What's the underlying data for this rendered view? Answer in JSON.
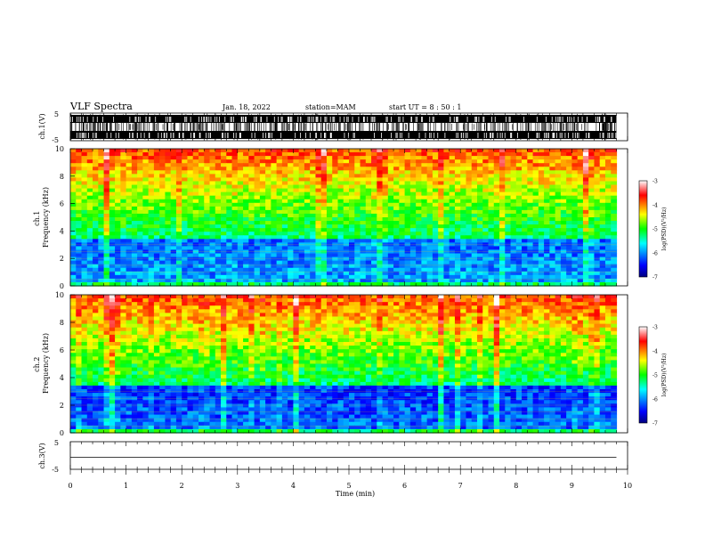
{
  "header": {
    "title": "VLF Spectra",
    "date": "Jan. 18, 2022",
    "station": "station=MAM",
    "start": "start UT = 8 : 50 : 1"
  },
  "chart_data": [
    {
      "type": "line",
      "ylabel": "ch.1(V)",
      "ylim": [
        -5,
        5
      ],
      "yticks": [
        "5",
        "-5"
      ],
      "xlim": [
        0,
        10
      ],
      "series": [],
      "note_color": "#000000"
    },
    {
      "type": "heatmap",
      "ylabel": "ch.1 Frequency (kHz)",
      "ylim": [
        0,
        10
      ],
      "yticks": [
        "10",
        "8",
        "6",
        "4",
        "2",
        "0"
      ],
      "xlim": [
        0,
        10
      ],
      "data_xmax": 9.8,
      "colorbar": {
        "label": "log(PSD)(V²/Hz)",
        "range": [
          -7,
          -3
        ],
        "ticks": [
          "-3",
          "-4",
          "-5",
          "-6",
          "-7"
        ]
      }
    },
    {
      "type": "heatmap",
      "ylabel": "ch.2 Frequency (kHz)",
      "ylim": [
        0,
        10
      ],
      "yticks": [
        "10",
        "8",
        "6",
        "4",
        "2",
        "0"
      ],
      "xlim": [
        0,
        10
      ],
      "data_xmax": 9.8,
      "colorbar": {
        "label": "log(PSD)(V²/Hz)",
        "range": [
          -7,
          -3
        ],
        "ticks": [
          "-3",
          "-4",
          "-5",
          "-6",
          "-7"
        ]
      }
    },
    {
      "type": "line",
      "ylabel": "ch.3(V)",
      "ylim": [
        -5,
        5
      ],
      "yticks": [
        "5",
        "-5"
      ],
      "xlim": [
        0,
        10
      ],
      "series": [
        {
          "x": [
            0,
            9.8
          ],
          "y": [
            0,
            0
          ]
        }
      ]
    }
  ],
  "xaxis": {
    "label": "Time (min)",
    "ticks": [
      "0",
      "1",
      "2",
      "3",
      "4",
      "5",
      "6",
      "7",
      "8",
      "9",
      "10"
    ]
  },
  "colors": {
    "axis": "#000000",
    "colormap": [
      "#00007f",
      "#0000ff",
      "#00ffff",
      "#00ff00",
      "#ffff00",
      "#ff0000",
      "#ffffff"
    ]
  }
}
